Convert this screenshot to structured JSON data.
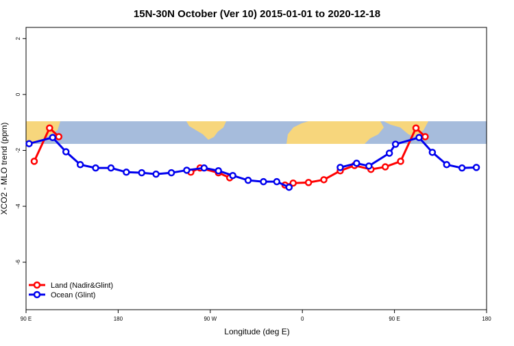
{
  "chart_data": {
    "type": "line",
    "title": "15N-30N October (Ver 10)   2015-01-01 to 2020-12-18",
    "x_label": "Longitude (deg E)",
    "y_label": "XCO2 - MLO trend (ppm)",
    "xlim": [
      90,
      540
    ],
    "xticks": [
      {
        "value": 90,
        "label": "90 E"
      },
      {
        "value": 180,
        "label": "180"
      },
      {
        "value": 270,
        "label": "90 W"
      },
      {
        "value": 360,
        "label": "0"
      },
      {
        "value": 450,
        "label": "90 E"
      },
      {
        "value": 540,
        "label": "180"
      }
    ],
    "ylim": [
      -7.7,
      2.4
    ],
    "yticks": [
      2,
      0,
      -2,
      -4,
      -6
    ],
    "legend": "bottomleft",
    "series": [
      {
        "name": "Land (Nadir&Glint)",
        "color": "#ff0000",
        "x": [
          98,
          113,
          122,
          null,
          251,
          260,
          278,
          289,
          null,
          343,
          351,
          366,
          381,
          397,
          411,
          427,
          441,
          456,
          471,
          480
        ],
        "values": [
          -2.39,
          -1.2,
          -1.51,
          null,
          -2.78,
          -2.63,
          -2.8,
          -2.98,
          null,
          -3.24,
          -3.17,
          -3.15,
          -3.05,
          -2.73,
          -2.54,
          -2.68,
          -2.59,
          -2.39,
          -1.2,
          -1.51
        ]
      },
      {
        "name": "Ocean (Glint)",
        "color": "#0000ee",
        "x": [
          93,
          116,
          129,
          143,
          158,
          173,
          188,
          203,
          217,
          232,
          247,
          264,
          278,
          292,
          307,
          322,
          335,
          347,
          null,
          397,
          413,
          425,
          445,
          451,
          474,
          487,
          501,
          516,
          530
        ],
        "values": [
          -1.76,
          -1.54,
          -2.05,
          -2.51,
          -2.63,
          -2.63,
          -2.78,
          -2.8,
          -2.85,
          -2.8,
          -2.71,
          -2.63,
          -2.73,
          -2.9,
          -3.07,
          -3.12,
          -3.12,
          -3.32,
          null,
          -2.61,
          -2.46,
          -2.56,
          -2.1,
          -1.78,
          -1.54,
          -2.07,
          -2.51,
          -2.63,
          -2.61
        ]
      }
    ]
  }
}
